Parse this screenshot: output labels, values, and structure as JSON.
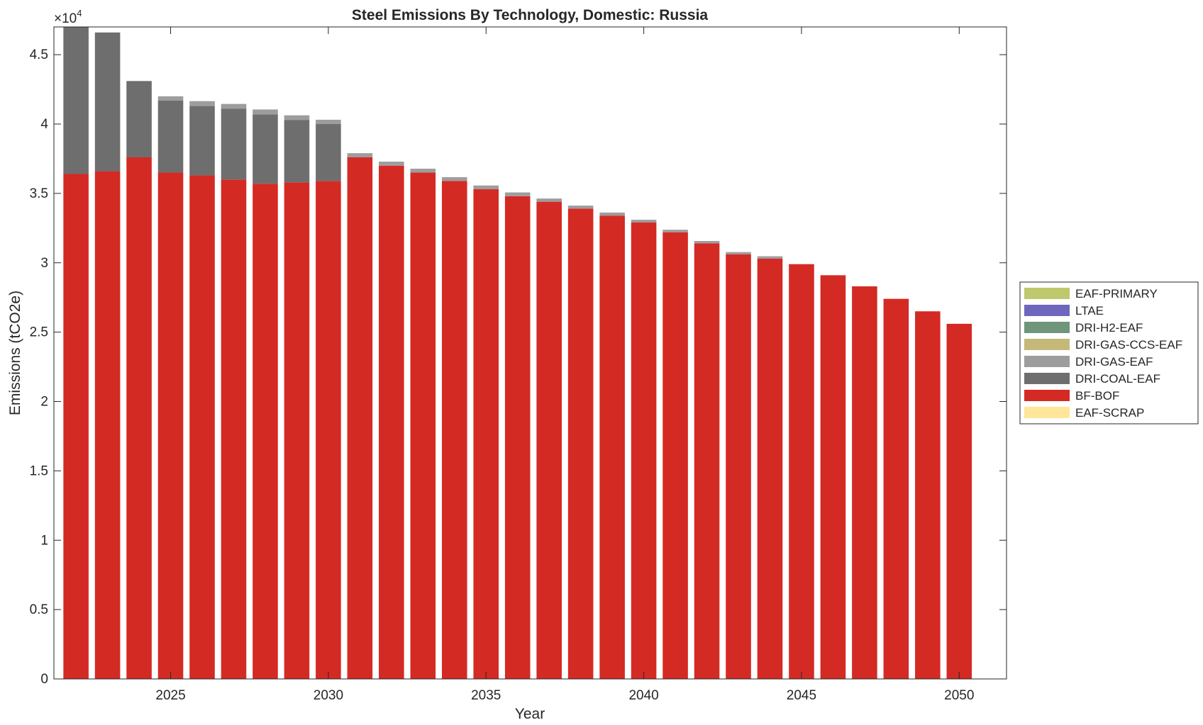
{
  "chart_data": {
    "type": "bar",
    "stacked": true,
    "title": "Steel Emissions By Technology, Domestic: Russia",
    "xlabel": "Year",
    "ylabel": "Emissions (tCO2e)",
    "y_exponent_label": "×10",
    "y_exponent_power": "4",
    "xlim": [
      2021.3,
      2051.5
    ],
    "ylim": [
      0,
      4.7
    ],
    "x_ticks": [
      2025,
      2030,
      2035,
      2040,
      2045,
      2050
    ],
    "x_tick_labels": [
      "2025",
      "2030",
      "2035",
      "2040",
      "2045",
      "2050"
    ],
    "y_ticks": [
      0,
      0.5,
      1,
      1.5,
      2,
      2.5,
      3,
      3.5,
      4,
      4.5
    ],
    "y_tick_labels": [
      "0",
      "0.5",
      "1",
      "1.5",
      "2",
      "2.5",
      "3",
      "3.5",
      "4",
      "4.5"
    ],
    "grid": false,
    "legend_placement": "right-outside",
    "years": [
      2022,
      2023,
      2024,
      2025,
      2026,
      2027,
      2028,
      2029,
      2030,
      2031,
      2032,
      2033,
      2034,
      2035,
      2036,
      2037,
      2038,
      2039,
      2040,
      2041,
      2042,
      2043,
      2044,
      2045,
      2046,
      2047,
      2048,
      2049,
      2050
    ],
    "series": [
      {
        "name": "EAF-SCRAP",
        "color": "#FFE699",
        "values": [
          0,
          0,
          0,
          0,
          0,
          0,
          0,
          0,
          0,
          0,
          0,
          0,
          0,
          0,
          0,
          0,
          0,
          0,
          0,
          0,
          0,
          0,
          0,
          0,
          0,
          0,
          0,
          0,
          0
        ]
      },
      {
        "name": "BF-BOF",
        "color": "#D42A24",
        "values": [
          3.64,
          3.66,
          3.76,
          3.65,
          3.63,
          3.6,
          3.57,
          3.58,
          3.59,
          3.76,
          3.7,
          3.65,
          3.59,
          3.53,
          3.48,
          3.44,
          3.39,
          3.34,
          3.29,
          3.22,
          3.14,
          3.06,
          3.03,
          2.99,
          2.91,
          2.83,
          2.74,
          2.65,
          2.56
        ]
      },
      {
        "name": "DRI-COAL-EAF",
        "color": "#6E6E6E",
        "values": [
          1.06,
          1.0,
          0.55,
          0.52,
          0.5,
          0.51,
          0.5,
          0.45,
          0.41,
          0,
          0,
          0,
          0,
          0,
          0,
          0,
          0,
          0,
          0,
          0,
          0,
          0,
          0,
          0,
          0,
          0,
          0,
          0,
          0
        ]
      },
      {
        "name": "DRI-GAS-EAF",
        "color": "#9D9D9D",
        "values": [
          0,
          0,
          0,
          0.03,
          0.035,
          0.035,
          0.035,
          0.033,
          0.031,
          0.03,
          0.029,
          0.028,
          0.027,
          0.027,
          0.027,
          0.023,
          0.022,
          0.022,
          0.02,
          0.018,
          0.017,
          0.017,
          0.017,
          0,
          0,
          0,
          0,
          0,
          0
        ]
      },
      {
        "name": "DRI-GAS-CCS-EAF",
        "color": "#C5B97A",
        "values": [
          0,
          0,
          0,
          0,
          0,
          0,
          0,
          0,
          0,
          0,
          0,
          0,
          0,
          0,
          0,
          0,
          0,
          0,
          0,
          0,
          0,
          0,
          0,
          0,
          0,
          0,
          0,
          0,
          0
        ]
      },
      {
        "name": "DRI-H2-EAF",
        "color": "#6F957A",
        "values": [
          0,
          0,
          0,
          0,
          0,
          0,
          0,
          0,
          0,
          0,
          0,
          0,
          0,
          0,
          0,
          0,
          0,
          0,
          0,
          0,
          0,
          0,
          0,
          0,
          0,
          0,
          0,
          0,
          0
        ]
      },
      {
        "name": "LTAE",
        "color": "#6E67BD",
        "values": [
          0,
          0,
          0,
          0,
          0,
          0,
          0,
          0,
          0,
          0,
          0,
          0,
          0,
          0,
          0,
          0,
          0,
          0,
          0,
          0,
          0,
          0,
          0,
          0,
          0,
          0,
          0,
          0,
          0
        ]
      },
      {
        "name": "EAF-PRIMARY",
        "color": "#BFC86C",
        "values": [
          0,
          0,
          0,
          0,
          0,
          0,
          0,
          0,
          0,
          0,
          0,
          0,
          0,
          0,
          0,
          0,
          0,
          0,
          0,
          0,
          0,
          0,
          0,
          0,
          0,
          0,
          0,
          0,
          0
        ]
      }
    ],
    "legend_order": [
      "EAF-PRIMARY",
      "LTAE",
      "DRI-H2-EAF",
      "DRI-GAS-CCS-EAF",
      "DRI-GAS-EAF",
      "DRI-COAL-EAF",
      "BF-BOF",
      "EAF-SCRAP"
    ]
  }
}
